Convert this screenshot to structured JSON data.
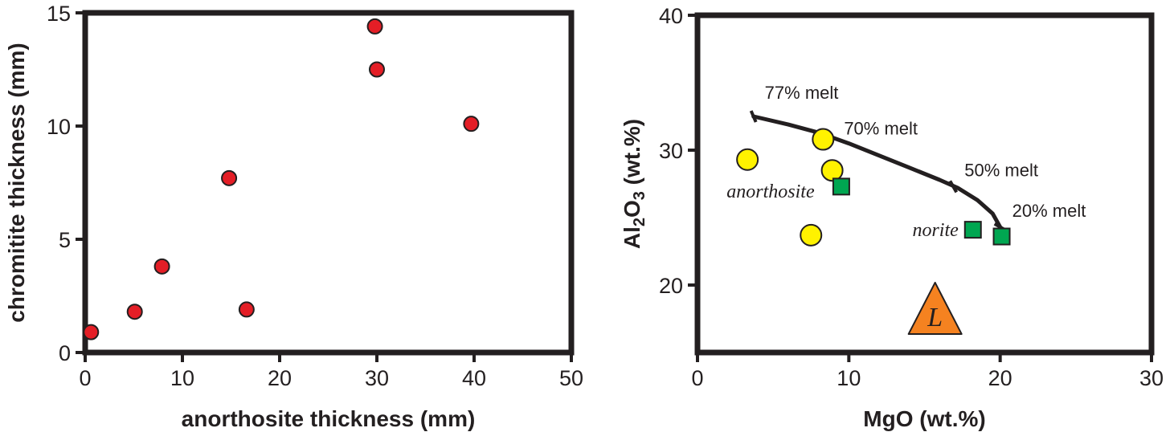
{
  "colors": {
    "frame": "#231f20",
    "point_red": "#e41e26",
    "point_yellow": "#fff200",
    "point_green": "#00a651",
    "triangle_orange": "#f58220"
  },
  "chart_data": [
    {
      "type": "scatter",
      "title": "",
      "xlabel": "anorthosite thickness (mm)",
      "ylabel": "chromitite thickness (mm)",
      "xlim": [
        0,
        50
      ],
      "ylim": [
        0,
        15
      ],
      "xticks": [
        0,
        10,
        20,
        30,
        40,
        50
      ],
      "yticks": [
        0,
        5,
        10,
        15
      ],
      "grid": false,
      "series": [
        {
          "marker": "circle",
          "color": "#e41e26",
          "points": [
            {
              "x": 0.6,
              "y": 0.9
            },
            {
              "x": 5.1,
              "y": 1.8
            },
            {
              "x": 7.9,
              "y": 3.8
            },
            {
              "x": 14.8,
              "y": 7.7
            },
            {
              "x": 16.6,
              "y": 1.9
            },
            {
              "x": 29.8,
              "y": 14.4
            },
            {
              "x": 30.0,
              "y": 12.5
            },
            {
              "x": 39.7,
              "y": 10.1
            }
          ]
        }
      ]
    },
    {
      "type": "scatter",
      "title": "",
      "xlabel": "MgO (wt.%)",
      "ylabel": {
        "main": "Al",
        "sub1": "2",
        "mid": "O",
        "sub2": "3",
        "tail": " (wt.%)"
      },
      "xlim": [
        0,
        30
      ],
      "ylim": [
        15,
        40
      ],
      "xticks": [
        0,
        10,
        20,
        30
      ],
      "yticks": [
        20,
        30,
        40
      ],
      "grid": false,
      "series": [
        {
          "label": "anorthosite",
          "marker": "circle",
          "color": "#fff200",
          "points": [
            {
              "x": 3.3,
              "y": 29.3
            },
            {
              "x": 8.3,
              "y": 30.8
            },
            {
              "x": 8.9,
              "y": 28.5
            },
            {
              "x": 7.5,
              "y": 23.7
            }
          ]
        },
        {
          "label": "norite",
          "marker": "square",
          "color": "#00a651",
          "points": [
            {
              "x": 9.5,
              "y": 27.3
            },
            {
              "x": 18.2,
              "y": 24.1
            },
            {
              "x": 20.1,
              "y": 23.6
            }
          ]
        },
        {
          "label": "L",
          "marker": "triangle",
          "color": "#f58220",
          "points": [
            {
              "x": 15.7,
              "y": 17.8
            }
          ]
        }
      ],
      "melt_curve": {
        "points": [
          {
            "x": 3.7,
            "y": 32.5
          },
          {
            "x": 6.0,
            "y": 31.9
          },
          {
            "x": 8.0,
            "y": 31.3
          },
          {
            "x": 10.0,
            "y": 30.5
          },
          {
            "x": 12.0,
            "y": 29.6
          },
          {
            "x": 14.0,
            "y": 28.7
          },
          {
            "x": 16.0,
            "y": 27.8
          },
          {
            "x": 17.2,
            "y": 27.2
          },
          {
            "x": 18.5,
            "y": 26.3
          },
          {
            "x": 19.5,
            "y": 25.3
          },
          {
            "x": 20.0,
            "y": 24.3
          }
        ],
        "tick_labels": [
          {
            "label": "77% melt",
            "x": 3.7,
            "y": 32.5
          },
          {
            "label": "70% melt",
            "x": 8.3,
            "y": 30.8
          },
          {
            "label": "50% melt",
            "x": 16.9,
            "y": 27.3
          },
          {
            "label": "20% melt",
            "x": 20.0,
            "y": 24.3
          }
        ]
      }
    }
  ]
}
